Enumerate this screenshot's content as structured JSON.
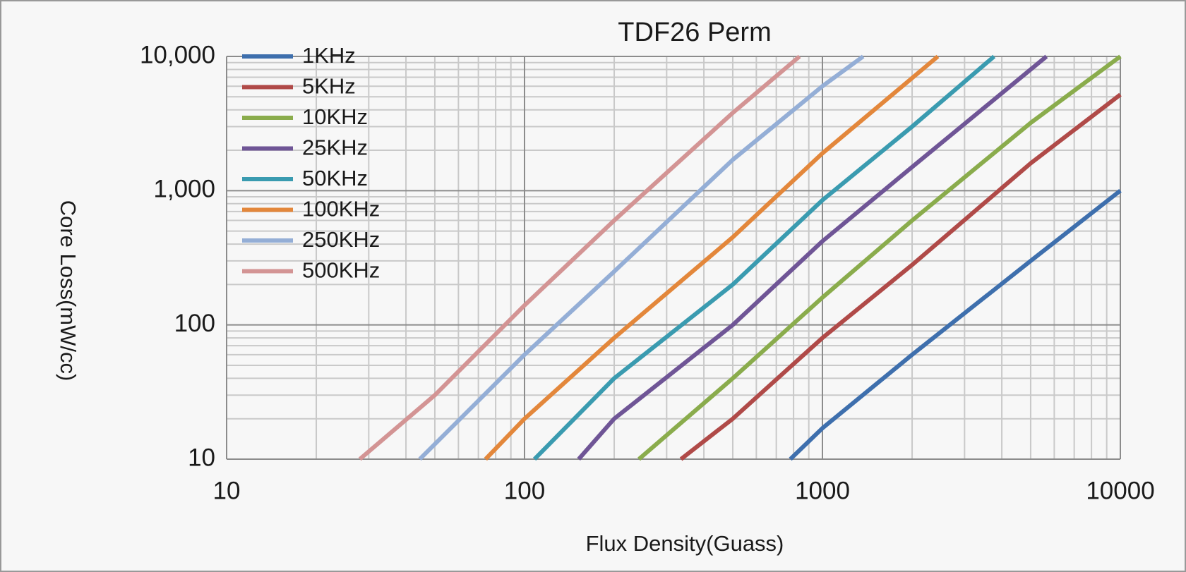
{
  "chart_data": {
    "type": "line",
    "title": "TDF26 Perm",
    "x_label": "Flux Density(Guass)",
    "y_label": "Core Loss(mW/cc)",
    "log_x": true,
    "log_y": true,
    "grid": true,
    "legend": "upper-left",
    "xlim": [
      10,
      10000
    ],
    "ylim": [
      10,
      10000
    ],
    "xticks": [
      10,
      100,
      1000,
      10000
    ],
    "yticks": [
      10,
      100,
      {
        "value": 1000,
        "label": "1,000"
      },
      {
        "value": 10000,
        "label": "10,000"
      }
    ],
    "series": [
      {
        "name": "1KHz",
        "color": "#3e6fad",
        "x": [
          780,
          1000,
          2000,
          5000,
          10000
        ],
        "values": [
          10,
          17,
          60,
          300,
          1000
        ]
      },
      {
        "name": "5KHz",
        "color": "#b04a48",
        "x": [
          335,
          500,
          1000,
          2000,
          5000,
          10000
        ],
        "values": [
          10,
          20,
          80,
          280,
          1600,
          5200
        ]
      },
      {
        "name": "10KHz",
        "color": "#8aac4c",
        "x": [
          242,
          500,
          1000,
          2000,
          5000,
          10000
        ],
        "values": [
          10,
          40,
          160,
          600,
          3200,
          10000
        ]
      },
      {
        "name": "25KHz",
        "color": "#6f5596",
        "x": [
          152,
          200,
          500,
          1000,
          2000,
          5650
        ],
        "values": [
          10,
          20,
          100,
          420,
          1500,
          10000
        ]
      },
      {
        "name": "50KHz",
        "color": "#3a9bb0",
        "x": [
          108,
          200,
          500,
          1000,
          2000,
          3770
        ],
        "values": [
          10,
          40,
          200,
          850,
          3000,
          10000
        ]
      },
      {
        "name": "100KHz",
        "color": "#e3873b",
        "x": [
          74,
          100,
          200,
          500,
          1000,
          2440
        ],
        "values": [
          10,
          20,
          80,
          450,
          1900,
          10000
        ]
      },
      {
        "name": "250KHz",
        "color": "#94aed6",
        "x": [
          44.5,
          100,
          200,
          500,
          1000,
          1370
        ],
        "values": [
          10,
          60,
          250,
          1700,
          6000,
          10000
        ]
      },
      {
        "name": "500KHz",
        "color": "#d39494",
        "x": [
          28,
          50,
          100,
          200,
          500,
          838
        ],
        "values": [
          10,
          30,
          140,
          600,
          3800,
          10000
        ]
      }
    ]
  }
}
